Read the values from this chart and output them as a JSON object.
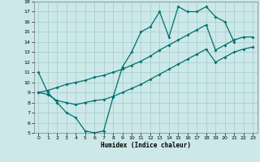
{
  "xlabel": "Humidex (Indice chaleur)",
  "background_color": "#cce8e8",
  "grid_color": "#aad0d0",
  "line_color": "#007070",
  "xlim": [
    -0.5,
    23.5
  ],
  "ylim": [
    5,
    18
  ],
  "xticks": [
    0,
    1,
    2,
    3,
    4,
    5,
    6,
    7,
    8,
    9,
    10,
    11,
    12,
    13,
    14,
    15,
    16,
    17,
    18,
    19,
    20,
    21,
    22,
    23
  ],
  "yticks": [
    5,
    6,
    7,
    8,
    9,
    10,
    11,
    12,
    13,
    14,
    15,
    16,
    17,
    18
  ],
  "line1_x": [
    0,
    1,
    2,
    3,
    4,
    5,
    6,
    7,
    8,
    9,
    10,
    11,
    12,
    13,
    14,
    15,
    16,
    17,
    18,
    19,
    20,
    21
  ],
  "line1_y": [
    11,
    9,
    8,
    7,
    6.5,
    5.2,
    5.0,
    5.2,
    8.5,
    11.5,
    13.0,
    15.0,
    15.5,
    17.0,
    14.5,
    17.5,
    17.0,
    17.0,
    17.5,
    16.5,
    16.0,
    14.0
  ],
  "line2_x": [
    0,
    1,
    2,
    3,
    4,
    5,
    6,
    7,
    8,
    9,
    10,
    11,
    12,
    13,
    14,
    15,
    16,
    17,
    18,
    19,
    20,
    21,
    22,
    23
  ],
  "line2_y": [
    9.0,
    8.8,
    8.2,
    8.0,
    7.8,
    8.0,
    8.2,
    8.3,
    8.6,
    9.0,
    9.4,
    9.8,
    10.3,
    10.8,
    11.3,
    11.8,
    12.3,
    12.8,
    13.3,
    12.0,
    12.5,
    13.0,
    13.3,
    13.5
  ],
  "line3_x": [
    0,
    1,
    2,
    3,
    4,
    5,
    6,
    7,
    8,
    9,
    10,
    11,
    12,
    13,
    14,
    15,
    16,
    17,
    18,
    19,
    20,
    21,
    22,
    23
  ],
  "line3_y": [
    9.0,
    9.2,
    9.5,
    9.8,
    10.0,
    10.2,
    10.5,
    10.7,
    11.0,
    11.3,
    11.7,
    12.1,
    12.6,
    13.2,
    13.7,
    14.2,
    14.7,
    15.2,
    15.7,
    13.2,
    13.7,
    14.2,
    14.5,
    14.5
  ]
}
